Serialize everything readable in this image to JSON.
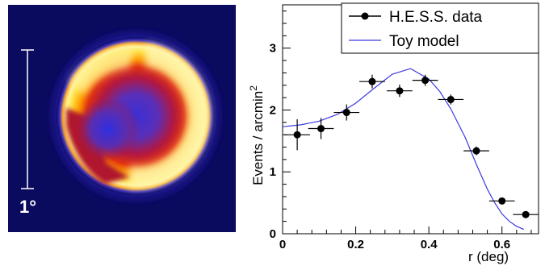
{
  "map": {
    "scale_label": "1°",
    "colors": {
      "background": "#0a0a5e",
      "core": "#3a2fd6",
      "mid": "#c0142e",
      "bright": "#ffffa8"
    }
  },
  "chart_data": {
    "type": "scatter",
    "xlabel": "r (deg)",
    "ylabel": "Events / arcmin",
    "ylabel_superscript": "2",
    "xlim": [
      0,
      0.7
    ],
    "ylim": [
      0,
      3.7
    ],
    "xticks": [
      0,
      0.2,
      0.4,
      0.6
    ],
    "xtick_labels": [
      "0",
      "0.2",
      "0.4",
      "0.6"
    ],
    "yticks": [
      0,
      1,
      2,
      3
    ],
    "ytick_labels": [
      "0",
      "1",
      "2",
      "3"
    ],
    "legend_position": "top-right",
    "series": [
      {
        "name": "H.E.S.S. data",
        "color": "#000000",
        "points": [
          {
            "x": 0.04,
            "y": 1.6,
            "xerr": 0.035,
            "yerr": 0.25
          },
          {
            "x": 0.105,
            "y": 1.7,
            "xerr": 0.035,
            "yerr": 0.17
          },
          {
            "x": 0.175,
            "y": 1.96,
            "xerr": 0.035,
            "yerr": 0.13
          },
          {
            "x": 0.245,
            "y": 2.46,
            "xerr": 0.035,
            "yerr": 0.11
          },
          {
            "x": 0.32,
            "y": 2.31,
            "xerr": 0.035,
            "yerr": 0.1
          },
          {
            "x": 0.39,
            "y": 2.48,
            "xerr": 0.035,
            "yerr": 0.09
          },
          {
            "x": 0.46,
            "y": 2.17,
            "xerr": 0.035,
            "yerr": 0.08
          },
          {
            "x": 0.53,
            "y": 1.34,
            "xerr": 0.035,
            "yerr": 0.07
          },
          {
            "x": 0.6,
            "y": 0.53,
            "xerr": 0.035,
            "yerr": 0.05
          },
          {
            "x": 0.665,
            "y": 0.31,
            "xerr": 0.035,
            "yerr": 0.04
          }
        ]
      },
      {
        "name": "Toy model",
        "type": "line",
        "color": "#3a3adf",
        "x": [
          0.0,
          0.05,
          0.1,
          0.15,
          0.2,
          0.25,
          0.3,
          0.35,
          0.4,
          0.43,
          0.46,
          0.5,
          0.53,
          0.56,
          0.58,
          0.6,
          0.62,
          0.64,
          0.66
        ],
        "y": [
          1.73,
          1.76,
          1.82,
          1.93,
          2.11,
          2.35,
          2.58,
          2.67,
          2.5,
          2.3,
          2.02,
          1.55,
          1.12,
          0.72,
          0.5,
          0.32,
          0.2,
          0.12,
          0.07
        ]
      }
    ]
  }
}
